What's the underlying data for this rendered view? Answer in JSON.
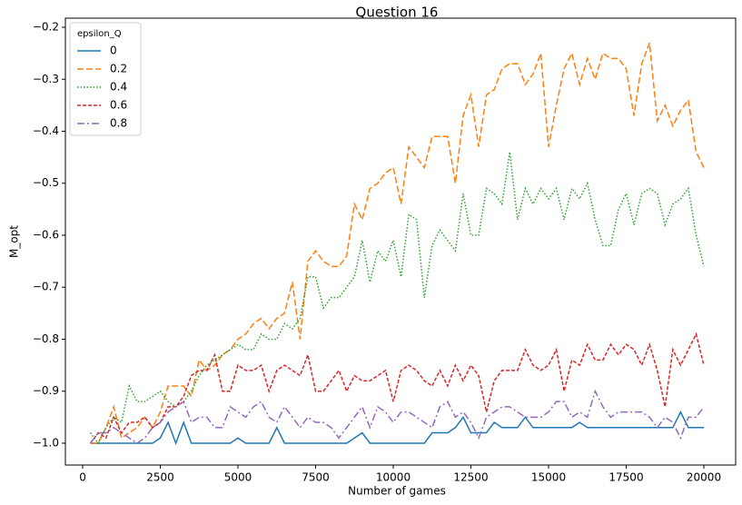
{
  "chart_data": {
    "type": "line",
    "title": "Question 16",
    "xlabel": "Number of games",
    "ylabel": "M_opt",
    "legend_title": "epsilon_Q",
    "legend": "upper left",
    "x": [
      250,
      500,
      750,
      1000,
      1250,
      1500,
      1750,
      2000,
      2250,
      2500,
      2750,
      3000,
      3250,
      3500,
      3750,
      4000,
      4250,
      4500,
      4750,
      5000,
      5250,
      5500,
      5750,
      6000,
      6250,
      6500,
      6750,
      7000,
      7250,
      7500,
      7750,
      8000,
      8250,
      8500,
      8750,
      9000,
      9250,
      9500,
      9750,
      10000,
      10250,
      10500,
      10750,
      11000,
      11250,
      11500,
      11750,
      12000,
      12250,
      12500,
      12750,
      13000,
      13250,
      13500,
      13750,
      14000,
      14250,
      14500,
      14750,
      15000,
      15250,
      15500,
      15750,
      16000,
      16250,
      16500,
      16750,
      17000,
      17250,
      17500,
      17750,
      18000,
      18250,
      18500,
      18750,
      19000,
      19250,
      19500,
      19750,
      20000
    ],
    "series": [
      {
        "name": "0",
        "color": "#1f77b4",
        "linestyle": "solid",
        "values": [
          -1,
          -1,
          -1,
          -1,
          -1,
          -1,
          -1,
          -1,
          -1,
          -0.99,
          -0.96,
          -1,
          -0.96,
          -1,
          -1,
          -1,
          -1,
          -1,
          -1,
          -0.99,
          -1,
          -1,
          -1,
          -1,
          -0.97,
          -1,
          -1,
          -1,
          -1,
          -1,
          -1,
          -1,
          -1,
          -1,
          -0.99,
          -0.98,
          -1,
          -1,
          -1,
          -1,
          -1,
          -1,
          -1,
          -1,
          -0.98,
          -0.98,
          -0.98,
          -0.97,
          -0.95,
          -0.98,
          -0.98,
          -0.98,
          -0.96,
          -0.97,
          -0.97,
          -0.97,
          -0.95,
          -0.97,
          -0.97,
          -0.97,
          -0.97,
          -0.97,
          -0.97,
          -0.96,
          -0.97,
          -0.97,
          -0.97,
          -0.97,
          -0.97,
          -0.97,
          -0.97,
          -0.97,
          -0.97,
          -0.97,
          -0.97,
          -0.97,
          -0.94,
          -0.97,
          -0.97,
          -0.97
        ]
      },
      {
        "name": "0.2",
        "color": "#ff7f0e",
        "linestyle": "dashed",
        "values": [
          -1,
          -1,
          -0.97,
          -0.93,
          -0.99,
          -0.98,
          -0.97,
          -0.95,
          -0.97,
          -0.94,
          -0.89,
          -0.89,
          -0.89,
          -0.91,
          -0.84,
          -0.86,
          -0.85,
          -0.83,
          -0.82,
          -0.8,
          -0.79,
          -0.77,
          -0.76,
          -0.78,
          -0.76,
          -0.75,
          -0.69,
          -0.8,
          -0.65,
          -0.63,
          -0.65,
          -0.66,
          -0.66,
          -0.64,
          -0.54,
          -0.57,
          -0.51,
          -0.5,
          -0.48,
          -0.47,
          -0.54,
          -0.43,
          -0.45,
          -0.47,
          -0.41,
          -0.41,
          -0.41,
          -0.5,
          -0.37,
          -0.33,
          -0.43,
          -0.33,
          -0.32,
          -0.28,
          -0.27,
          -0.27,
          -0.31,
          -0.29,
          -0.25,
          -0.43,
          -0.35,
          -0.28,
          -0.25,
          -0.31,
          -0.26,
          -0.3,
          -0.25,
          -0.26,
          -0.26,
          -0.28,
          -0.37,
          -0.27,
          -0.23,
          -0.38,
          -0.35,
          -0.39,
          -0.36,
          -0.34,
          -0.44,
          -0.47
        ]
      },
      {
        "name": "0.4",
        "color": "#2ca02c",
        "linestyle": "dotted",
        "values": [
          -0.98,
          -1,
          -0.97,
          -0.95,
          -0.96,
          -0.89,
          -0.92,
          -0.92,
          -0.91,
          -0.9,
          -0.92,
          -0.93,
          -0.92,
          -0.9,
          -0.87,
          -0.85,
          -0.84,
          -0.83,
          -0.82,
          -0.81,
          -0.82,
          -0.82,
          -0.79,
          -0.8,
          -0.8,
          -0.77,
          -0.78,
          -0.76,
          -0.68,
          -0.68,
          -0.74,
          -0.72,
          -0.72,
          -0.7,
          -0.68,
          -0.61,
          -0.69,
          -0.63,
          -0.65,
          -0.61,
          -0.68,
          -0.56,
          -0.57,
          -0.72,
          -0.62,
          -0.59,
          -0.61,
          -0.63,
          -0.52,
          -0.6,
          -0.6,
          -0.51,
          -0.52,
          -0.54,
          -0.44,
          -0.57,
          -0.51,
          -0.54,
          -0.51,
          -0.53,
          -0.51,
          -0.57,
          -0.51,
          -0.53,
          -0.5,
          -0.57,
          -0.62,
          -0.62,
          -0.55,
          -0.52,
          -0.58,
          -0.52,
          -0.51,
          -0.52,
          -0.58,
          -0.54,
          -0.53,
          -0.51,
          -0.6,
          -0.66
        ]
      },
      {
        "name": "0.6",
        "color": "#d62728",
        "linestyle": "dashdense",
        "values": [
          -1,
          -0.98,
          -0.99,
          -0.95,
          -0.98,
          -0.96,
          -0.96,
          -0.95,
          -0.97,
          -0.96,
          -0.93,
          -0.93,
          -0.91,
          -0.87,
          -0.86,
          -0.86,
          -0.83,
          -0.9,
          -0.9,
          -0.85,
          -0.86,
          -0.86,
          -0.85,
          -0.9,
          -0.86,
          -0.85,
          -0.86,
          -0.87,
          -0.83,
          -0.9,
          -0.9,
          -0.88,
          -0.86,
          -0.9,
          -0.87,
          -0.88,
          -0.88,
          -0.87,
          -0.86,
          -0.92,
          -0.86,
          -0.85,
          -0.86,
          -0.88,
          -0.89,
          -0.86,
          -0.89,
          -0.85,
          -0.88,
          -0.85,
          -0.87,
          -0.94,
          -0.88,
          -0.86,
          -0.86,
          -0.86,
          -0.82,
          -0.85,
          -0.86,
          -0.85,
          -0.82,
          -0.9,
          -0.84,
          -0.85,
          -0.81,
          -0.84,
          -0.84,
          -0.81,
          -0.83,
          -0.81,
          -0.82,
          -0.85,
          -0.81,
          -0.86,
          -0.93,
          -0.82,
          -0.85,
          -0.82,
          -0.79,
          -0.85
        ]
      },
      {
        "name": "0.8",
        "color": "#9467bd",
        "linestyle": "dashdot",
        "values": [
          -1,
          -0.98,
          -0.98,
          -0.97,
          -0.98,
          -0.99,
          -1,
          -0.99,
          -0.97,
          -0.96,
          -0.94,
          -0.93,
          -0.92,
          -0.96,
          -0.95,
          -0.95,
          -0.97,
          -0.97,
          -0.93,
          -0.94,
          -0.95,
          -0.93,
          -0.92,
          -0.95,
          -0.96,
          -0.93,
          -0.95,
          -0.97,
          -0.95,
          -0.96,
          -0.96,
          -0.97,
          -0.99,
          -0.97,
          -0.95,
          -0.93,
          -0.97,
          -0.93,
          -0.94,
          -0.96,
          -0.94,
          -0.94,
          -0.95,
          -0.96,
          -0.97,
          -0.93,
          -0.92,
          -0.95,
          -0.94,
          -0.96,
          -0.99,
          -0.95,
          -0.94,
          -0.93,
          -0.93,
          -0.94,
          -0.95,
          -0.95,
          -0.95,
          -0.94,
          -0.92,
          -0.92,
          -0.95,
          -0.94,
          -0.95,
          -0.9,
          -0.93,
          -0.95,
          -0.94,
          -0.94,
          -0.94,
          -0.94,
          -0.95,
          -0.97,
          -0.95,
          -0.96,
          -0.99,
          -0.95,
          -0.95,
          -0.93
        ]
      }
    ],
    "xlim": [
      -556,
      21023
    ],
    "xticks": [
      0,
      2500,
      5000,
      7500,
      10000,
      12500,
      15000,
      17500,
      20000
    ],
    "ylim": [
      -1.042,
      -0.1825
    ],
    "yticks": [
      {
        "value": -1.0,
        "label": "−1.0"
      },
      {
        "value": -0.9,
        "label": "−0.9"
      },
      {
        "value": -0.8,
        "label": "−0.8"
      },
      {
        "value": -0.7,
        "label": "−0.7"
      },
      {
        "value": -0.6,
        "label": "−0.6"
      },
      {
        "value": -0.5,
        "label": "−0.5"
      },
      {
        "value": -0.4,
        "label": "−0.4"
      },
      {
        "value": -0.3,
        "label": "−0.3"
      },
      {
        "value": -0.2,
        "label": "−0.2"
      }
    ]
  }
}
